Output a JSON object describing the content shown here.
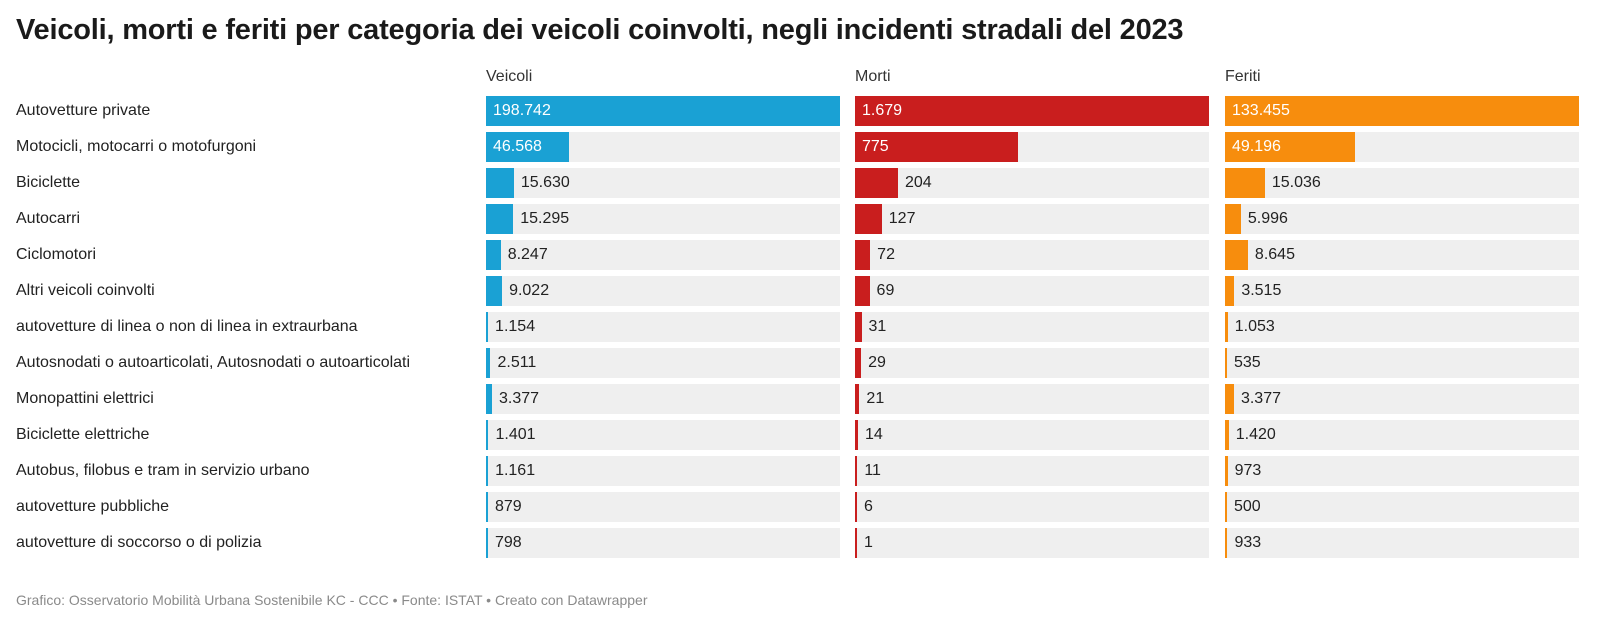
{
  "chart_data": {
    "type": "bar",
    "title": "Veicoli, morti e feriti per categoria dei veicoli coinvolti, negli incidenti stradali del 2023",
    "categories": [
      "Autovetture private",
      "Motocicli, motocarri o motofurgoni",
      "Biciclette",
      "Autocarri",
      "Ciclomotori",
      "Altri veicoli coinvolti",
      "autovetture di linea o non di linea in extraurbana",
      "Autosnodati o autoarticolati, Autosnodati o autoarticolati",
      "Monopattini elettrici",
      "Biciclette elettriche",
      "Autobus, filobus e tram in servizio urbano",
      "autovetture pubbliche",
      "autovetture di soccorso o di polizia"
    ],
    "series": [
      {
        "name": "Veicoli",
        "color": "#1aa1d4",
        "values": [
          198742,
          46568,
          15630,
          15295,
          8247,
          9022,
          1154,
          2511,
          3377,
          1401,
          1161,
          879,
          798
        ],
        "labels": [
          "198.742",
          "46.568",
          "15.630",
          "15.295",
          "8.247",
          "9.022",
          "1.154",
          "2.511",
          "3.377",
          "1.401",
          "1.161",
          "879",
          "798"
        ]
      },
      {
        "name": "Morti",
        "color": "#c91e1e",
        "values": [
          1679,
          775,
          204,
          127,
          72,
          69,
          31,
          29,
          21,
          14,
          11,
          6,
          1
        ],
        "labels": [
          "1.679",
          "775",
          "204",
          "127",
          "72",
          "69",
          "31",
          "29",
          "21",
          "14",
          "11",
          "6",
          "1"
        ]
      },
      {
        "name": "Feriti",
        "color": "#f78d0d",
        "values": [
          133455,
          49196,
          15036,
          5996,
          8645,
          3515,
          1053,
          535,
          3377,
          1420,
          973,
          500,
          933
        ],
        "labels": [
          "133.455",
          "49.196",
          "15.036",
          "5.996",
          "8.645",
          "3.515",
          "1.053",
          "535",
          "3.377",
          "1.420",
          "973",
          "500",
          "933"
        ]
      }
    ],
    "footer": "Grafico: Osservatorio Mobilità Urbana Sostenibile KC - CCC • Fonte: ISTAT • Creato con Datawrapper"
  }
}
